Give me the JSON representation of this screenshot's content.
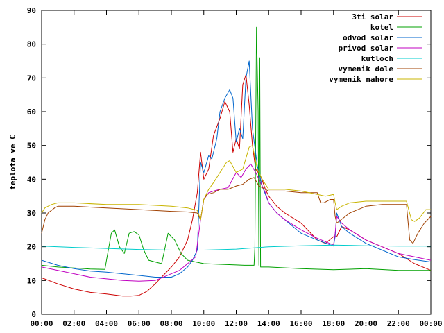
{
  "chart_data": {
    "type": "line",
    "title": "",
    "xlabel": "",
    "ylabel": "teplota ve C",
    "xlim": [
      0,
      24
    ],
    "ylim": [
      0,
      90
    ],
    "x_ticks": [
      "00:00",
      "02:00",
      "04:00",
      "06:00",
      "08:00",
      "10:00",
      "12:00",
      "14:00",
      "16:00",
      "18:00",
      "20:00",
      "22:00",
      "00:00"
    ],
    "y_ticks": [
      "0",
      "10",
      "20",
      "30",
      "40",
      "50",
      "60",
      "70",
      "80",
      "90"
    ],
    "grid": false,
    "legend_position": "top-right",
    "series": [
      {
        "name": "3ti solar",
        "color": "#cc0000",
        "x": [
          0,
          1,
          2,
          3,
          4,
          5,
          5.5,
          6,
          6.5,
          7,
          7.5,
          8,
          8.5,
          9,
          9.3,
          9.6,
          9.8,
          10,
          10.3,
          10.6,
          11,
          11.3,
          11.6,
          11.8,
          12,
          12.2,
          12.4,
          12.6,
          12.8,
          13,
          13.2,
          13.5,
          13.8,
          14,
          14.5,
          15,
          16,
          17,
          17.5,
          18,
          18.2,
          18.5,
          19,
          20,
          21,
          22,
          23,
          24
        ],
        "y": [
          10.8,
          9,
          7.5,
          6.5,
          6,
          5.4,
          5.4,
          5.6,
          6.8,
          9,
          11.5,
          14,
          17,
          22,
          28,
          36,
          48,
          40,
          43,
          53,
          58,
          63,
          60,
          48,
          52,
          49,
          68,
          71,
          62,
          50,
          43,
          41,
          37,
          35,
          32,
          30,
          27,
          22,
          21,
          23,
          23,
          26,
          25,
          22,
          20,
          18,
          15,
          13
        ]
      },
      {
        "name": "kotel",
        "color": "#00a000",
        "x": [
          0,
          1,
          2,
          3,
          3.9,
          4,
          4.3,
          4.5,
          4.8,
          5.1,
          5.4,
          5.7,
          6,
          6.3,
          6.6,
          7,
          7.4,
          7.8,
          8.2,
          8.6,
          9,
          9.5,
          10,
          11,
          12,
          12.5,
          13.1,
          13.15,
          13.25,
          13.35,
          13.4,
          13.45,
          13.5,
          13.6,
          14,
          16,
          18,
          20,
          22,
          24
        ],
        "y": [
          14.5,
          14,
          13.7,
          13.4,
          13.3,
          16,
          24,
          25,
          20,
          18,
          24,
          24.5,
          23.5,
          19,
          16,
          15.5,
          15,
          24,
          22,
          18,
          16,
          15.5,
          15,
          14.8,
          14.6,
          14.5,
          14.5,
          20,
          85,
          60,
          14.5,
          76,
          14,
          14,
          14,
          13.5,
          13.2,
          13.5,
          13,
          13
        ]
      },
      {
        "name": "odvod solar",
        "color": "#0066cc",
        "x": [
          0,
          1,
          2,
          3,
          4,
          5,
          6,
          7,
          7.5,
          8,
          8.5,
          9,
          9.3,
          9.6,
          9.8,
          10,
          10.3,
          10.5,
          10.8,
          11,
          11.3,
          11.6,
          11.8,
          12,
          12.2,
          12.4,
          12.6,
          12.8,
          13,
          13.3,
          13.6,
          14,
          14.5,
          15,
          16,
          17,
          18,
          18.1,
          18.2,
          18.5,
          19,
          20,
          21,
          22,
          23,
          24
        ],
        "y": [
          16,
          14.5,
          13.5,
          12.8,
          12.5,
          12,
          11.5,
          11,
          11,
          11,
          12,
          14,
          16,
          19,
          45,
          42,
          47,
          46,
          52,
          60,
          64,
          66.5,
          64,
          51,
          55,
          52,
          70,
          75,
          55,
          44,
          38,
          33,
          30,
          28,
          24,
          22,
          20.2,
          23,
          30,
          26,
          24,
          21,
          19,
          17,
          16.2,
          15.5
        ]
      },
      {
        "name": "privod solar",
        "color": "#c000c0",
        "x": [
          0,
          1,
          2,
          3,
          4,
          5,
          6,
          7,
          7.5,
          8,
          8.5,
          9,
          9.5,
          9.8,
          10,
          10.3,
          10.6,
          11,
          11.5,
          12,
          12.3,
          12.6,
          12.9,
          13.2,
          13.5,
          13.8,
          14,
          14.5,
          15,
          16,
          17,
          18,
          18.1,
          18.2,
          18.5,
          19,
          20,
          21,
          22,
          23,
          24
        ],
        "y": [
          14,
          13,
          12,
          11,
          10.5,
          10,
          9.8,
          10,
          11,
          12,
          13,
          15,
          17,
          28,
          34,
          36,
          36.5,
          37,
          37.5,
          42,
          40.5,
          43,
          44.5,
          42,
          39,
          36,
          33,
          30,
          28,
          25,
          22.5,
          20.5,
          24,
          29,
          27,
          25,
          22,
          20,
          18,
          17,
          16
        ]
      },
      {
        "name": "kutloch",
        "color": "#00cccc",
        "x": [
          0,
          2,
          4,
          6,
          8,
          10,
          12,
          14,
          16,
          18,
          20,
          22,
          24
        ],
        "y": [
          20.2,
          19.8,
          19.5,
          19.2,
          19,
          19,
          19.3,
          20,
          20.3,
          20.5,
          20.3,
          20.2,
          20.2
        ]
      },
      {
        "name": "vymenik dole",
        "color": "#a04000",
        "x": [
          0,
          0.2,
          0.4,
          0.8,
          1,
          2,
          4,
          6,
          8,
          9,
          9.6,
          9.8,
          10,
          10.2,
          10.6,
          11,
          11.5,
          12,
          12.4,
          12.8,
          13.1,
          13.4,
          14,
          15,
          16,
          17,
          17.2,
          17.4,
          17.8,
          18,
          18.1,
          18.2,
          19,
          20,
          21,
          22,
          22.5,
          22.7,
          22.9,
          23.2,
          23.6,
          24
        ],
        "y": [
          24,
          28,
          30,
          31.5,
          32,
          32,
          31.5,
          31,
          30.5,
          30.3,
          30,
          28,
          34,
          35.5,
          36,
          37,
          37,
          38,
          38.5,
          40,
          40.5,
          38,
          36.5,
          36.5,
          36,
          36,
          33,
          33,
          34,
          34,
          29,
          27,
          30,
          32,
          32.5,
          32.5,
          32.5,
          22,
          21,
          24,
          27,
          29
        ]
      },
      {
        "name": "vymenik nahore",
        "color": "#c8b400",
        "x": [
          0,
          0.2,
          0.6,
          1,
          2,
          4,
          6,
          8,
          9,
          9.6,
          9.8,
          10,
          10.3,
          10.6,
          11,
          11.4,
          11.6,
          12,
          12.4,
          12.8,
          13,
          13.3,
          13.6,
          14,
          15,
          16,
          17,
          17.5,
          18,
          18.1,
          18.2,
          18.5,
          19,
          20,
          21,
          22,
          22.5,
          22.8,
          23,
          23.3,
          23.7,
          24
        ],
        "y": [
          30,
          31.5,
          32.5,
          33,
          33,
          32.5,
          32.5,
          32,
          31.5,
          30.8,
          28,
          34,
          37,
          39,
          42,
          45,
          45.5,
          42,
          43,
          49.5,
          50,
          43,
          40,
          37,
          37,
          36.5,
          35.5,
          35,
          35.5,
          33,
          31,
          32,
          33,
          33.5,
          33.5,
          33.5,
          33.5,
          28,
          27.5,
          28.5,
          31,
          31
        ]
      }
    ]
  }
}
